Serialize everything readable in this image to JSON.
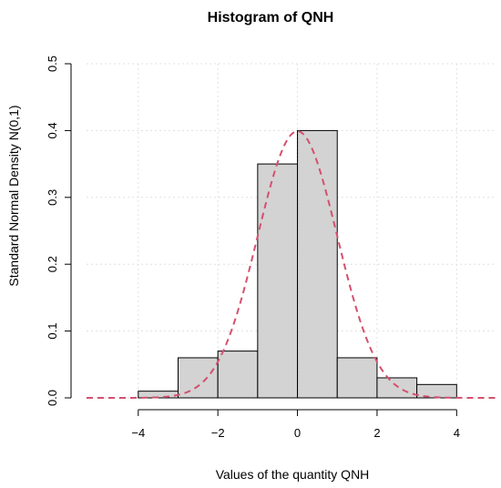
{
  "chart_data": {
    "type": "bar",
    "title": "Histogram of QNH",
    "xlabel": "Values of the quantity QNH",
    "ylabel": "Standard Normal Density N(0,1)",
    "xlim": [
      -5.3,
      5
    ],
    "ylim": [
      0,
      0.5
    ],
    "x_ticks": [
      -4,
      -2,
      0,
      2,
      4
    ],
    "y_ticks": [
      0.0,
      0.1,
      0.2,
      0.3,
      0.4,
      0.5
    ],
    "x_tick_labels": [
      "−4",
      "−2",
      "0",
      "2",
      "4"
    ],
    "y_tick_labels": [
      "0.0",
      "0.1",
      "0.2",
      "0.3",
      "0.4",
      "0.5"
    ],
    "bins": [
      {
        "x0": -4,
        "x1": -3,
        "density": 0.01
      },
      {
        "x0": -3,
        "x1": -2,
        "density": 0.06
      },
      {
        "x0": -2,
        "x1": -1,
        "density": 0.07
      },
      {
        "x0": -1,
        "x1": 0,
        "density": 0.35
      },
      {
        "x0": 0,
        "x1": 1,
        "density": 0.4
      },
      {
        "x0": 1,
        "x1": 2,
        "density": 0.06
      },
      {
        "x0": 2,
        "x1": 3,
        "density": 0.03
      },
      {
        "x0": 3,
        "x1": 4,
        "density": 0.02
      }
    ],
    "overlay_curve": {
      "distribution": "normal",
      "mean": 0,
      "sd": 1,
      "style": "dashed"
    },
    "grid": true,
    "colors": {
      "bar_fill": "#d3d3d3",
      "bar_stroke": "#000000",
      "curve": "#d4506e",
      "grid": "#e0e0e0"
    }
  }
}
